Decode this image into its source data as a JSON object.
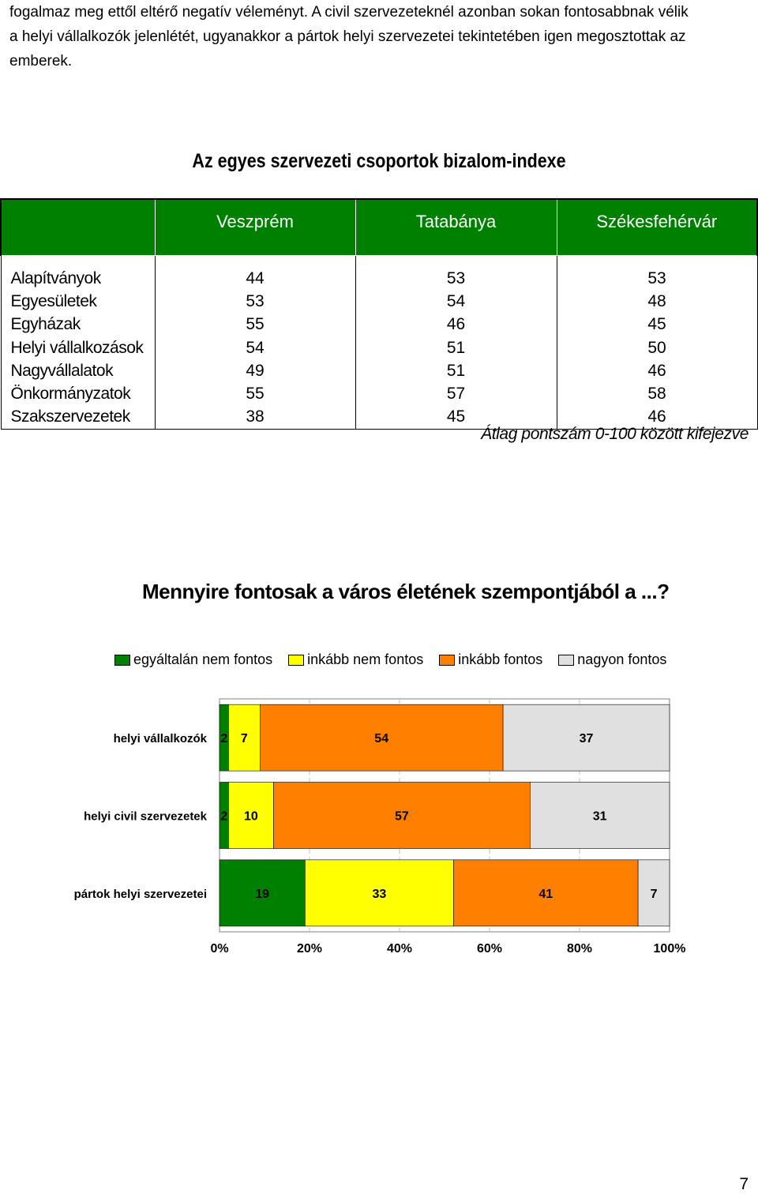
{
  "paragraph": {
    "lines": [
      "fogalmaz meg ettől eltérő negatív véleményt. A civil szervezeteknél azonban sokan fontosabbnak vélik",
      "a helyi vállalkozók jelenlétét, ugyanakkor a pártok helyi szervezetei tekintetében igen megosztottak az",
      "emberek."
    ]
  },
  "trust_table": {
    "title": "Az egyes szervezeti csoportok bizalom-indexe",
    "columns": [
      "Veszprém",
      "Tatabánya",
      "Székesfehérvár"
    ],
    "rows": [
      {
        "label": "Alapítványok",
        "values": [
          "44",
          "53",
          "53"
        ]
      },
      {
        "label": "Egyesületek",
        "values": [
          "53",
          "54",
          "48"
        ]
      },
      {
        "label": "Egyházak",
        "values": [
          "55",
          "46",
          "45"
        ]
      },
      {
        "label": "Helyi vállalkozások",
        "values": [
          "54",
          "51",
          "50"
        ]
      },
      {
        "label": "Nagyvállalatok",
        "values": [
          "49",
          "51",
          "46"
        ]
      },
      {
        "label": "Önkormányzatok",
        "values": [
          "55",
          "57",
          "58"
        ]
      },
      {
        "label": "Szakszervezetek",
        "values": [
          "38",
          "45",
          "46"
        ]
      }
    ],
    "note": "Átlag pontszám 0-100 között kifejezve",
    "header_color": "#008000"
  },
  "chart_data": {
    "type": "bar",
    "orientation": "horizontal",
    "stacked": "percent",
    "title": "Mennyire fontosak a város életének szempontjából a ...?",
    "categories": [
      "helyi vállalkozók",
      "helyi civil szervezetek",
      "pártok helyi szervezetei"
    ],
    "series": [
      {
        "name": "egyáltalán nem fontos",
        "color": "#008000",
        "values": [
          2,
          2,
          19
        ]
      },
      {
        "name": "inkább nem fontos",
        "color": "#ffff00",
        "values": [
          7,
          10,
          33
        ]
      },
      {
        "name": "inkább fontos",
        "color": "#ff8000",
        "values": [
          54,
          57,
          41
        ]
      },
      {
        "name": "nagyon fontos",
        "color": "#e0e0e0",
        "values": [
          37,
          31,
          7
        ]
      }
    ],
    "xlim": [
      0,
      100
    ],
    "xticks": [
      "0%",
      "20%",
      "40%",
      "60%",
      "80%",
      "100%"
    ],
    "legend_position": "top",
    "grid": true
  },
  "page_number": "7"
}
